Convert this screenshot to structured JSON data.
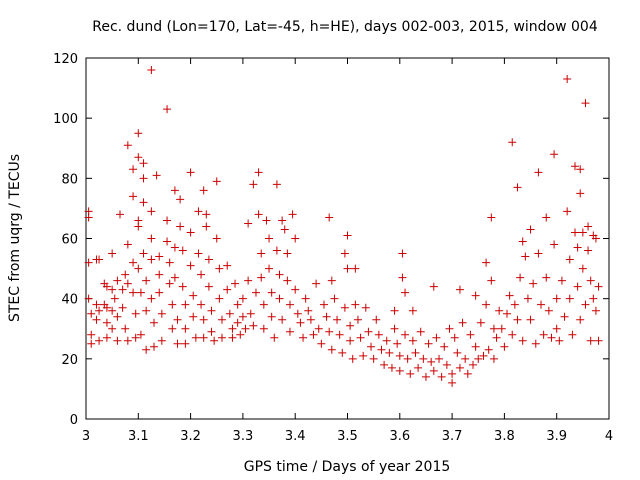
{
  "chart_data": {
    "type": "scatter",
    "title": "Rec. dund (Lon=170, Lat=-45, h=HE), days 002-003, 2015, window 004",
    "xlabel": "GPS time / Days of year 2015",
    "ylabel": "STEC from uqrg / TECUs",
    "xlim": [
      3.0,
      4.0
    ],
    "ylim": [
      0,
      120
    ],
    "xticks": [
      3,
      3.1,
      3.2,
      3.3,
      3.4,
      3.5,
      3.6,
      3.7,
      3.8,
      3.9,
      4
    ],
    "xtick_labels": [
      "3",
      "3.1",
      "3.2",
      "3.3",
      "3.4",
      "3.5",
      "3.6",
      "3.7",
      "3.8",
      "3.9",
      "4"
    ],
    "yticks": [
      0,
      20,
      40,
      60,
      80,
      100,
      120
    ],
    "ytick_labels": [
      "0",
      "20",
      "40",
      "60",
      "80",
      "100",
      "120"
    ],
    "grid": false,
    "marker": "+",
    "color": "#cc0000",
    "series": [
      {
        "name": "STEC",
        "points": [
          [
            3.005,
            69
          ],
          [
            3.005,
            67
          ],
          [
            3.005,
            52
          ],
          [
            3.005,
            40
          ],
          [
            3.01,
            35
          ],
          [
            3.01,
            28
          ],
          [
            3.01,
            25
          ],
          [
            3.02,
            53
          ],
          [
            3.02,
            38
          ],
          [
            3.02,
            33
          ],
          [
            3.025,
            53
          ],
          [
            3.025,
            36
          ],
          [
            3.025,
            26
          ],
          [
            3.035,
            45
          ],
          [
            3.035,
            38
          ],
          [
            3.04,
            44
          ],
          [
            3.04,
            37
          ],
          [
            3.04,
            32
          ],
          [
            3.04,
            27
          ],
          [
            3.05,
            55
          ],
          [
            3.05,
            43
          ],
          [
            3.05,
            36
          ],
          [
            3.05,
            30
          ],
          [
            3.055,
            40
          ],
          [
            3.06,
            46
          ],
          [
            3.06,
            34
          ],
          [
            3.06,
            26
          ],
          [
            3.065,
            68
          ],
          [
            3.07,
            43
          ],
          [
            3.07,
            37
          ],
          [
            3.075,
            48
          ],
          [
            3.075,
            30
          ],
          [
            3.08,
            91
          ],
          [
            3.08,
            58
          ],
          [
            3.08,
            45
          ],
          [
            3.08,
            26
          ],
          [
            3.09,
            83
          ],
          [
            3.09,
            74
          ],
          [
            3.09,
            52
          ],
          [
            3.09,
            42
          ],
          [
            3.095,
            35
          ],
          [
            3.095,
            27
          ],
          [
            3.1,
            95
          ],
          [
            3.1,
            87
          ],
          [
            3.1,
            66
          ],
          [
            3.1,
            64
          ],
          [
            3.1,
            50
          ],
          [
            3.105,
            42
          ],
          [
            3.105,
            28
          ],
          [
            3.11,
            85
          ],
          [
            3.11,
            80
          ],
          [
            3.11,
            72
          ],
          [
            3.11,
            55
          ],
          [
            3.115,
            46
          ],
          [
            3.115,
            36
          ],
          [
            3.115,
            23
          ],
          [
            3.125,
            116
          ],
          [
            3.125,
            69
          ],
          [
            3.125,
            60
          ],
          [
            3.125,
            53
          ],
          [
            3.125,
            40
          ],
          [
            3.13,
            32
          ],
          [
            3.13,
            24
          ],
          [
            3.135,
            81
          ],
          [
            3.14,
            54
          ],
          [
            3.14,
            48
          ],
          [
            3.14,
            42
          ],
          [
            3.145,
            35
          ],
          [
            3.145,
            26
          ],
          [
            3.155,
            103
          ],
          [
            3.155,
            66
          ],
          [
            3.155,
            59
          ],
          [
            3.16,
            52
          ],
          [
            3.16,
            45
          ],
          [
            3.165,
            38
          ],
          [
            3.165,
            30
          ],
          [
            3.17,
            76
          ],
          [
            3.17,
            57
          ],
          [
            3.17,
            47
          ],
          [
            3.175,
            33
          ],
          [
            3.175,
            25
          ],
          [
            3.18,
            73
          ],
          [
            3.18,
            64
          ],
          [
            3.185,
            56
          ],
          [
            3.185,
            44
          ],
          [
            3.19,
            38
          ],
          [
            3.19,
            30
          ],
          [
            3.19,
            25
          ],
          [
            3.2,
            82
          ],
          [
            3.2,
            62
          ],
          [
            3.2,
            51
          ],
          [
            3.205,
            41
          ],
          [
            3.205,
            34
          ],
          [
            3.21,
            27
          ],
          [
            3.215,
            69
          ],
          [
            3.215,
            55
          ],
          [
            3.22,
            48
          ],
          [
            3.22,
            38
          ],
          [
            3.225,
            76
          ],
          [
            3.225,
            33
          ],
          [
            3.225,
            27
          ],
          [
            3.23,
            68
          ],
          [
            3.23,
            64
          ],
          [
            3.235,
            53
          ],
          [
            3.235,
            44
          ],
          [
            3.24,
            36
          ],
          [
            3.24,
            29
          ],
          [
            3.245,
            26
          ],
          [
            3.25,
            79
          ],
          [
            3.25,
            60
          ],
          [
            3.255,
            50
          ],
          [
            3.255,
            40
          ],
          [
            3.26,
            33
          ],
          [
            3.26,
            27
          ],
          [
            3.27,
            51
          ],
          [
            3.27,
            43
          ],
          [
            3.275,
            35
          ],
          [
            3.28,
            30
          ],
          [
            3.28,
            27
          ],
          [
            3.285,
            45
          ],
          [
            3.29,
            38
          ],
          [
            3.29,
            32
          ],
          [
            3.295,
            28
          ],
          [
            3.3,
            40
          ],
          [
            3.3,
            34
          ],
          [
            3.305,
            30
          ],
          [
            3.31,
            65
          ],
          [
            3.31,
            46
          ],
          [
            3.315,
            35
          ],
          [
            3.32,
            78
          ],
          [
            3.32,
            31
          ],
          [
            3.325,
            42
          ],
          [
            3.33,
            82
          ],
          [
            3.33,
            68
          ],
          [
            3.335,
            55
          ],
          [
            3.335,
            47
          ],
          [
            3.34,
            38
          ],
          [
            3.34,
            30
          ],
          [
            3.345,
            66
          ],
          [
            3.35,
            60
          ],
          [
            3.35,
            50
          ],
          [
            3.355,
            42
          ],
          [
            3.355,
            34
          ],
          [
            3.36,
            27
          ],
          [
            3.365,
            78
          ],
          [
            3.365,
            56
          ],
          [
            3.37,
            48
          ],
          [
            3.37,
            40
          ],
          [
            3.375,
            66
          ],
          [
            3.375,
            33
          ],
          [
            3.38,
            63
          ],
          [
            3.385,
            55
          ],
          [
            3.385,
            46
          ],
          [
            3.39,
            38
          ],
          [
            3.39,
            29
          ],
          [
            3.395,
            68
          ],
          [
            3.4,
            60
          ],
          [
            3.4,
            43
          ],
          [
            3.405,
            35
          ],
          [
            3.41,
            32
          ],
          [
            3.415,
            27
          ],
          [
            3.42,
            40
          ],
          [
            3.425,
            36
          ],
          [
            3.43,
            33
          ],
          [
            3.435,
            28
          ],
          [
            3.44,
            45
          ],
          [
            3.445,
            30
          ],
          [
            3.45,
            25
          ],
          [
            3.455,
            38
          ],
          [
            3.46,
            34
          ],
          [
            3.465,
            67
          ],
          [
            3.465,
            29
          ],
          [
            3.47,
            46
          ],
          [
            3.47,
            23
          ],
          [
            3.475,
            40
          ],
          [
            3.48,
            33
          ],
          [
            3.485,
            28
          ],
          [
            3.49,
            22
          ],
          [
            3.495,
            55
          ],
          [
            3.495,
            37
          ],
          [
            3.5,
            61
          ],
          [
            3.5,
            50
          ],
          [
            3.505,
            31
          ],
          [
            3.505,
            26
          ],
          [
            3.51,
            20
          ],
          [
            3.515,
            50
          ],
          [
            3.515,
            38
          ],
          [
            3.52,
            33
          ],
          [
            3.525,
            27
          ],
          [
            3.53,
            21
          ],
          [
            3.535,
            37
          ],
          [
            3.54,
            29
          ],
          [
            3.545,
            24
          ],
          [
            3.55,
            20
          ],
          [
            3.555,
            33
          ],
          [
            3.56,
            28
          ],
          [
            3.565,
            23
          ],
          [
            3.57,
            18
          ],
          [
            3.575,
            26
          ],
          [
            3.58,
            22
          ],
          [
            3.585,
            17
          ],
          [
            3.59,
            36
          ],
          [
            3.59,
            30
          ],
          [
            3.595,
            25
          ],
          [
            3.6,
            21
          ],
          [
            3.6,
            16
          ],
          [
            3.605,
            55
          ],
          [
            3.605,
            47
          ],
          [
            3.61,
            42
          ],
          [
            3.61,
            28
          ],
          [
            3.615,
            20
          ],
          [
            3.62,
            15
          ],
          [
            3.625,
            36
          ],
          [
            3.625,
            26
          ],
          [
            3.63,
            22
          ],
          [
            3.635,
            17
          ],
          [
            3.64,
            29
          ],
          [
            3.645,
            20
          ],
          [
            3.65,
            14
          ],
          [
            3.655,
            25
          ],
          [
            3.66,
            19
          ],
          [
            3.665,
            44
          ],
          [
            3.665,
            16
          ],
          [
            3.67,
            27
          ],
          [
            3.675,
            20
          ],
          [
            3.68,
            14
          ],
          [
            3.685,
            24
          ],
          [
            3.69,
            18
          ],
          [
            3.695,
            30
          ],
          [
            3.7,
            15
          ],
          [
            3.7,
            12
          ],
          [
            3.705,
            27
          ],
          [
            3.71,
            22
          ],
          [
            3.715,
            43
          ],
          [
            3.715,
            17
          ],
          [
            3.72,
            32
          ],
          [
            3.725,
            20
          ],
          [
            3.73,
            15
          ],
          [
            3.735,
            28
          ],
          [
            3.74,
            18
          ],
          [
            3.745,
            41
          ],
          [
            3.745,
            24
          ],
          [
            3.75,
            20
          ],
          [
            3.755,
            32
          ],
          [
            3.76,
            21
          ],
          [
            3.765,
            52
          ],
          [
            3.765,
            38
          ],
          [
            3.77,
            23
          ],
          [
            3.775,
            67
          ],
          [
            3.775,
            46
          ],
          [
            3.78,
            30
          ],
          [
            3.78,
            20
          ],
          [
            3.785,
            27
          ],
          [
            3.79,
            36
          ],
          [
            3.795,
            30
          ],
          [
            3.8,
            24
          ],
          [
            3.805,
            35
          ],
          [
            3.81,
            41
          ],
          [
            3.815,
            92
          ],
          [
            3.815,
            28
          ],
          [
            3.82,
            38
          ],
          [
            3.825,
            77
          ],
          [
            3.825,
            33
          ],
          [
            3.83,
            47
          ],
          [
            3.835,
            59
          ],
          [
            3.835,
            26
          ],
          [
            3.84,
            54
          ],
          [
            3.845,
            40
          ],
          [
            3.85,
            63
          ],
          [
            3.85,
            33
          ],
          [
            3.855,
            45
          ],
          [
            3.86,
            25
          ],
          [
            3.865,
            82
          ],
          [
            3.865,
            55
          ],
          [
            3.87,
            38
          ],
          [
            3.875,
            28
          ],
          [
            3.88,
            67
          ],
          [
            3.88,
            47
          ],
          [
            3.885,
            36
          ],
          [
            3.89,
            27
          ],
          [
            3.895,
            88
          ],
          [
            3.895,
            58
          ],
          [
            3.9,
            40
          ],
          [
            3.9,
            30
          ],
          [
            3.905,
            26
          ],
          [
            3.91,
            46
          ],
          [
            3.915,
            34
          ],
          [
            3.92,
            113
          ],
          [
            3.92,
            69
          ],
          [
            3.925,
            53
          ],
          [
            3.925,
            40
          ],
          [
            3.93,
            28
          ],
          [
            3.935,
            84
          ],
          [
            3.935,
            62
          ],
          [
            3.94,
            57
          ],
          [
            3.94,
            44
          ],
          [
            3.945,
            75
          ],
          [
            3.945,
            83
          ],
          [
            3.945,
            33
          ],
          [
            3.95,
            62
          ],
          [
            3.95,
            50
          ],
          [
            3.955,
            105
          ],
          [
            3.955,
            38
          ],
          [
            3.96,
            64
          ],
          [
            3.96,
            56
          ],
          [
            3.965,
            46
          ],
          [
            3.965,
            26
          ],
          [
            3.97,
            61
          ],
          [
            3.97,
            40
          ],
          [
            3.975,
            60
          ],
          [
            3.975,
            36
          ],
          [
            3.98,
            44
          ],
          [
            3.98,
            26
          ]
        ]
      }
    ]
  }
}
